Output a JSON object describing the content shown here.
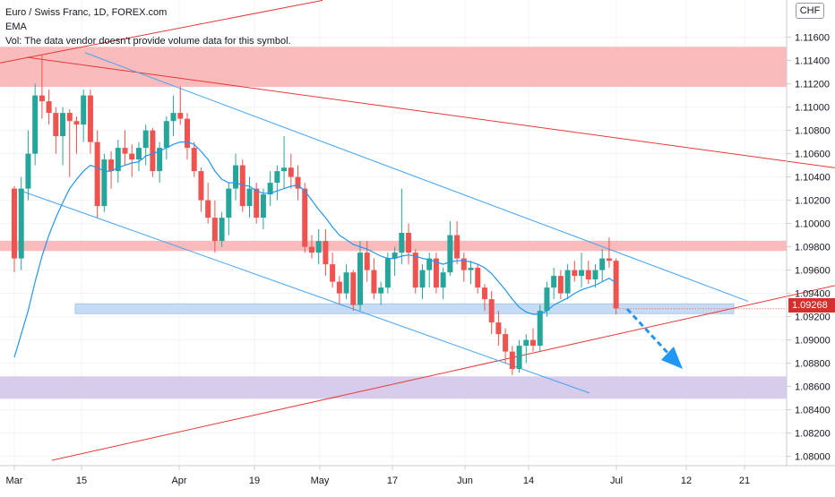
{
  "header": {
    "title": "Euro / Swiss Franc, 1D, FOREX.com",
    "indicator": "EMA",
    "volume_note": "Vol: The data vendor doesn't provide volume data for this symbol."
  },
  "currency": "CHF",
  "last_price": "1.09268",
  "colors": {
    "up": "#26a69a",
    "down": "#ef5350",
    "ema": "#2196f3",
    "trendline_red": "#e53935",
    "trendline_blue": "#42a5f5",
    "zone_red": "#f8b4b4",
    "zone_blue": "#c6dcf4",
    "zone_purple": "#d6c9ec",
    "arrow": "#2196f3"
  },
  "chart_data": {
    "type": "candlestick",
    "symbol": "EURCHF",
    "x_tick_labels": [
      "Mar",
      "15",
      "Apr",
      "19",
      "May",
      "17",
      "Jun",
      "14",
      "Jul",
      "12",
      "21"
    ],
    "y_tick_labels": [
      "1.08000",
      "1.08200",
      "1.08400",
      "1.08600",
      "1.08800",
      "1.09000",
      "1.09200",
      "1.09400",
      "1.09600",
      "1.09800",
      "1.10000",
      "1.10200",
      "1.10400",
      "1.10600",
      "1.10800",
      "1.11000",
      "1.11200",
      "1.11400",
      "1.11600"
    ],
    "ylim": [
      1.0792,
      1.1192
    ],
    "candles": [
      [
        1.103,
        1.1032,
        1.0958,
        1.097
      ],
      [
        1.097,
        1.104,
        1.096,
        1.103
      ],
      [
        1.103,
        1.108,
        1.102,
        1.106
      ],
      [
        1.106,
        1.112,
        1.105,
        1.111
      ],
      [
        1.111,
        1.1145,
        1.109,
        1.1105
      ],
      [
        1.1105,
        1.1115,
        1.1085,
        1.1095
      ],
      [
        1.1095,
        1.11,
        1.106,
        1.1075
      ],
      [
        1.1075,
        1.11,
        1.105,
        1.1095
      ],
      [
        1.1095,
        1.1098,
        1.104,
        1.1088
      ],
      [
        1.1088,
        1.1092,
        1.106,
        1.1085
      ],
      [
        1.1085,
        1.1115,
        1.107,
        1.111
      ],
      [
        1.111,
        1.1115,
        1.106,
        1.107
      ],
      [
        1.107,
        1.108,
        1.1005,
        1.1015
      ],
      [
        1.1015,
        1.106,
        1.101,
        1.1055
      ],
      [
        1.1055,
        1.1062,
        1.103,
        1.1045
      ],
      [
        1.1045,
        1.1072,
        1.1035,
        1.1065
      ],
      [
        1.1065,
        1.108,
        1.105,
        1.106
      ],
      [
        1.106,
        1.1068,
        1.104,
        1.1055
      ],
      [
        1.1055,
        1.107,
        1.1045,
        1.1065
      ],
      [
        1.1065,
        1.1085,
        1.105,
        1.108
      ],
      [
        1.108,
        1.1082,
        1.104,
        1.1045
      ],
      [
        1.1045,
        1.107,
        1.1035,
        1.1065
      ],
      [
        1.1065,
        1.1092,
        1.1055,
        1.1088
      ],
      [
        1.1088,
        1.111,
        1.1075,
        1.1095
      ],
      [
        1.1095,
        1.1118,
        1.1085,
        1.109
      ],
      [
        1.109,
        1.1095,
        1.1055,
        1.1065
      ],
      [
        1.1065,
        1.107,
        1.104,
        1.1045
      ],
      [
        1.1045,
        1.1048,
        1.101,
        1.102
      ],
      [
        1.102,
        1.1035,
        1.1,
        1.1005
      ],
      [
        1.1005,
        1.102,
        1.0975,
        1.0985
      ],
      [
        1.0985,
        1.101,
        1.098,
        1.1005
      ],
      [
        1.1005,
        1.1035,
        1.099,
        1.103
      ],
      [
        1.103,
        1.106,
        1.102,
        1.105
      ],
      [
        1.105,
        1.1055,
        1.101,
        1.1015
      ],
      [
        1.1015,
        1.104,
        1.1005,
        1.103
      ],
      [
        1.103,
        1.1035,
        1.1,
        1.1005
      ],
      [
        1.1005,
        1.103,
        1.0995,
        1.1025
      ],
      [
        1.1025,
        1.1045,
        1.1015,
        1.1035
      ],
      [
        1.1035,
        1.105,
        1.102,
        1.1045
      ],
      [
        1.1045,
        1.1075,
        1.103,
        1.1048
      ],
      [
        1.1048,
        1.106,
        1.103,
        1.104
      ],
      [
        1.104,
        1.105,
        1.102,
        1.103
      ],
      [
        1.103,
        1.1035,
        1.0975,
        1.098
      ],
      [
        1.098,
        1.099,
        1.097,
        1.0975
      ],
      [
        1.0975,
        1.0995,
        1.0965,
        1.0985
      ],
      [
        1.0985,
        1.0995,
        1.0955,
        1.0965
      ],
      [
        1.0965,
        1.0975,
        1.0945,
        1.095
      ],
      [
        1.095,
        1.0955,
        1.093,
        1.094
      ],
      [
        1.094,
        1.0965,
        1.0935,
        1.0958
      ],
      [
        1.0958,
        1.096,
        1.0925,
        1.093
      ],
      [
        1.093,
        1.0985,
        1.0925,
        1.0975
      ],
      [
        1.0975,
        1.0985,
        1.095,
        1.096
      ],
      [
        1.096,
        1.097,
        1.0935,
        1.094
      ],
      [
        1.094,
        1.095,
        1.093,
        1.0945
      ],
      [
        1.0945,
        1.0975,
        1.094,
        1.097
      ],
      [
        1.097,
        1.098,
        1.0955,
        1.0975
      ],
      [
        1.0975,
        1.103,
        1.0965,
        1.0992
      ],
      [
        1.0992,
        1.1,
        1.0965,
        1.0975
      ],
      [
        1.0975,
        1.0978,
        1.094,
        1.0945
      ],
      [
        1.0945,
        1.0965,
        1.0935,
        1.096
      ],
      [
        1.096,
        1.0975,
        1.0945,
        1.097
      ],
      [
        1.097,
        1.0975,
        1.094,
        1.0945
      ],
      [
        1.0945,
        1.0962,
        1.0935,
        1.0958
      ],
      [
        1.0958,
        1.1002,
        1.0955,
        1.099
      ],
      [
        1.099,
        1.1002,
        1.0965,
        1.097
      ],
      [
        1.097,
        1.0975,
        1.095,
        1.096
      ],
      [
        1.096,
        1.0968,
        1.0948,
        1.0962
      ],
      [
        1.0962,
        1.0965,
        1.094,
        1.0945
      ],
      [
        1.0945,
        1.0948,
        1.0925,
        1.0935
      ],
      [
        1.0935,
        1.0942,
        1.0905,
        1.0915
      ],
      [
        1.0915,
        1.0925,
        1.0895,
        1.0905
      ],
      [
        1.0905,
        1.091,
        1.088,
        1.089
      ],
      [
        1.089,
        1.0895,
        1.087,
        1.0875
      ],
      [
        1.0875,
        1.09,
        1.0872,
        1.0895
      ],
      [
        1.0895,
        1.0905,
        1.088,
        1.09
      ],
      [
        1.09,
        1.091,
        1.089,
        1.0895
      ],
      [
        1.0895,
        1.093,
        1.089,
        1.0925
      ],
      [
        1.0925,
        1.095,
        1.092,
        1.0945
      ],
      [
        1.0945,
        1.0962,
        1.0935,
        1.0955
      ],
      [
        1.0955,
        1.096,
        1.0935,
        1.094
      ],
      [
        1.094,
        1.0965,
        1.0935,
        1.096
      ],
      [
        1.096,
        1.0968,
        1.095,
        1.0955
      ],
      [
        1.0955,
        1.0975,
        1.0945,
        1.096
      ],
      [
        1.096,
        1.0968,
        1.0948,
        1.0952
      ],
      [
        1.0952,
        1.0965,
        1.0945,
        1.096
      ],
      [
        1.096,
        1.0978,
        1.095,
        1.097
      ],
      [
        1.097,
        1.0988,
        1.0962,
        1.0968
      ],
      [
        1.0968,
        1.097,
        1.0922,
        1.0927
      ]
    ],
    "ema": [
      1.0885,
      1.0905,
      1.0925,
      1.095,
      1.0972,
      1.099,
      1.1005,
      1.1018,
      1.103,
      1.1038,
      1.1045,
      1.105,
      1.1048,
      1.1045,
      1.1045,
      1.1048,
      1.105,
      1.1052,
      1.1053,
      1.1058,
      1.106,
      1.1062,
      1.1065,
      1.1068,
      1.107,
      1.107,
      1.1068,
      1.1062,
      1.1055,
      1.1045,
      1.1038,
      1.1035,
      1.1035,
      1.1033,
      1.1032,
      1.1028,
      1.1026,
      1.1026,
      1.1028,
      1.103,
      1.1032,
      1.1033,
      1.1028,
      1.102,
      1.1012,
      1.1005,
      1.0997,
      1.099,
      1.0986,
      1.0982,
      1.098,
      1.0978,
      1.0975,
      1.0972,
      1.097,
      1.097,
      1.0972,
      1.0973,
      1.0972,
      1.097,
      1.0969,
      1.0967,
      1.0965,
      1.0967,
      1.0968,
      1.0968,
      1.0967,
      1.0965,
      1.0962,
      1.0957,
      1.095,
      1.0943,
      1.0935,
      1.0928,
      1.0924,
      1.0922,
      1.0922,
      1.0925,
      1.093,
      1.0933,
      1.0936,
      1.094,
      1.0943,
      1.0945,
      1.0947,
      1.095,
      1.0953,
      1.0949
    ]
  }
}
